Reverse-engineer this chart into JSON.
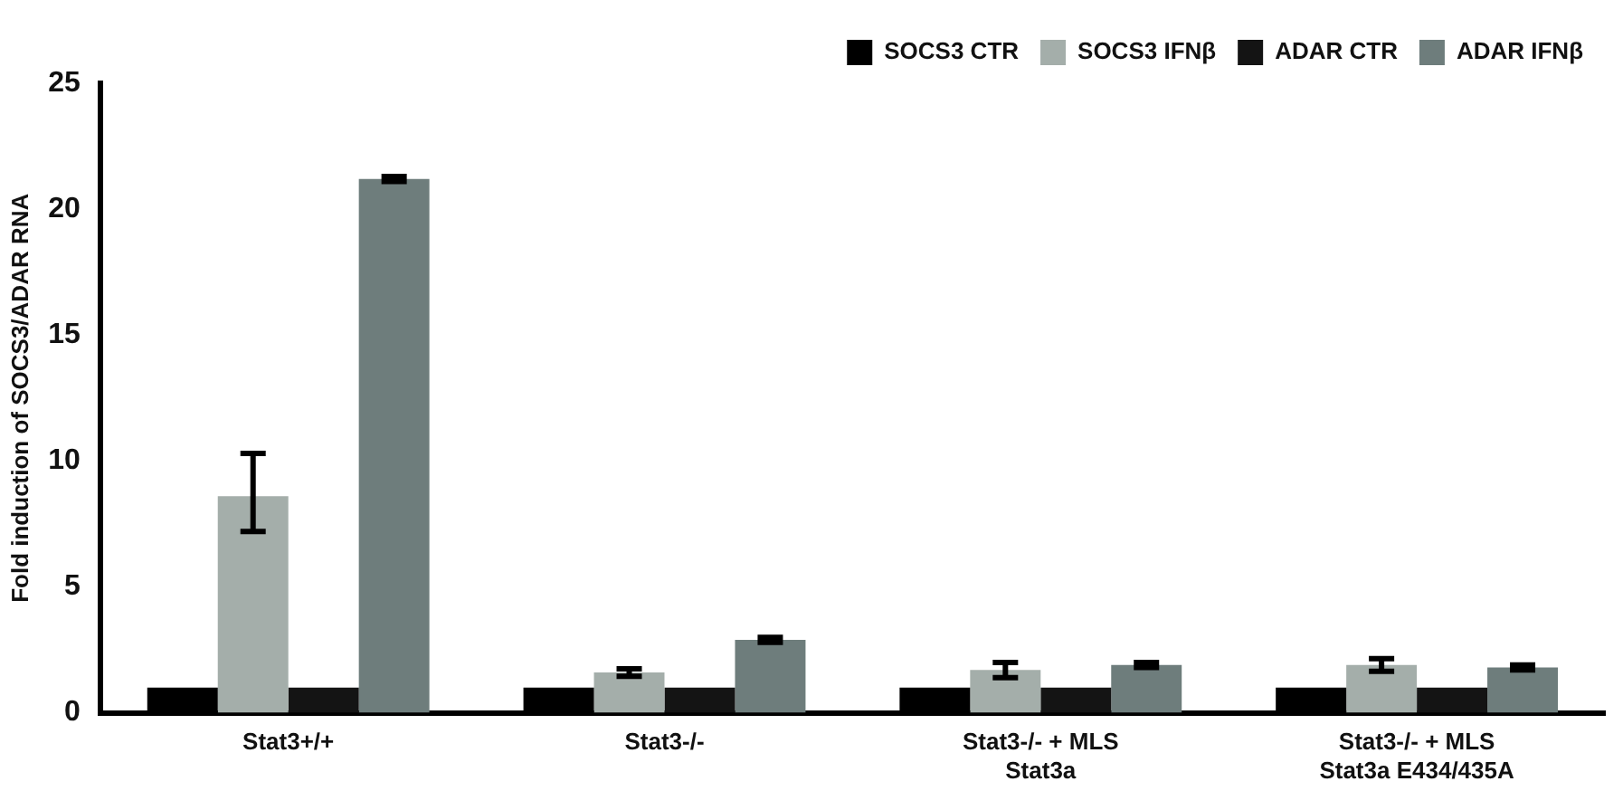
{
  "chart_data": {
    "type": "bar",
    "ylabel": "Fold induction of SOCS3/ADAR RNA",
    "categories": [
      "Stat3+/+",
      "Stat3-/-",
      "Stat3-/- + MLS\nStat3a",
      "Stat3-/- + MLS\nStat3a E434/435A"
    ],
    "series": [
      {
        "name": "SOCS3 CTR",
        "color": "#000000",
        "values": [
          1,
          1,
          1,
          1
        ]
      },
      {
        "name": "SOCS3 IFNβ",
        "color": "#a4aeaa",
        "values": [
          8.6,
          1.6,
          1.7,
          1.9
        ],
        "errors": [
          [
            7.2,
            10.3
          ],
          0.15,
          0.3,
          0.25
        ]
      },
      {
        "name": "ADAR CTR",
        "color": "#141414",
        "values": [
          1,
          1,
          1,
          1
        ]
      },
      {
        "name": "ADAR IFNβ",
        "color": "#6e7d7c",
        "values": [
          21.2,
          2.9,
          1.9,
          1.8
        ],
        "errors": [
          0.1,
          0.1,
          0.1,
          0.1
        ]
      }
    ],
    "ylim": [
      0,
      25
    ],
    "yticks": [
      0,
      5,
      10,
      15,
      20,
      25
    ],
    "grid": false,
    "legend": "top right"
  }
}
